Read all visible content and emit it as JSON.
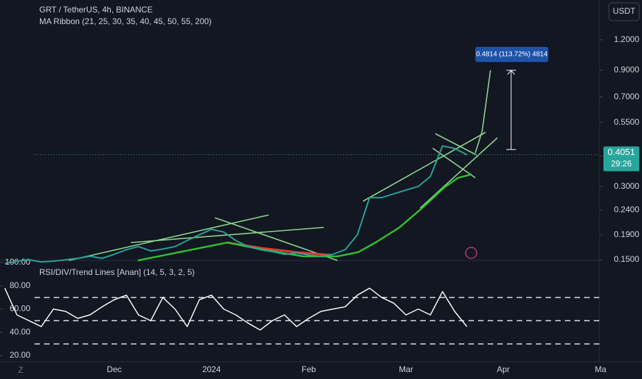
{
  "currency": "USDT",
  "countdown": "29:26",
  "chart_data": [
    {
      "type": "line",
      "title": "GRT / TetherUS, 4h, BINANCE",
      "subtitle": "MA Ribbon (21, 25, 30, 35, 40, 45, 50, 55, 200)",
      "annotation": "0.4814 (113.72%) 4814",
      "log_scale": true,
      "color": "#26a69a",
      "categories": [
        null,
        null,
        null,
        null,
        null,
        null,
        null,
        null,
        null,
        "Dec",
        null,
        null,
        null,
        null,
        null,
        null,
        null,
        "2024",
        null,
        null,
        null,
        null,
        null,
        null,
        null,
        "Feb",
        null,
        null,
        null,
        null,
        null,
        null,
        null,
        "Mar",
        null,
        null,
        null,
        null,
        null,
        null,
        null,
        "Apr",
        null,
        null,
        null,
        null,
        null,
        null,
        null,
        "Ma"
      ],
      "values": [
        0.145,
        0.148,
        0.15,
        0.147,
        0.148,
        0.15,
        0.152,
        0.155,
        0.152,
        0.158,
        0.165,
        0.17,
        0.163,
        0.166,
        0.17,
        0.18,
        0.19,
        0.2,
        0.195,
        0.18,
        0.17,
        0.165,
        0.162,
        0.158,
        0.16,
        0.157,
        0.155,
        0.158,
        0.165,
        0.19,
        0.27,
        0.27,
        0.28,
        0.29,
        0.3,
        0.33,
        0.44,
        0.43,
        0.4051,
        null,
        null,
        null,
        null,
        null,
        null,
        null,
        null,
        null,
        null,
        null
      ],
      "ylim": [
        0.149,
        1.75
      ],
      "yticks": [
        {
          "value": 0.15,
          "label": "0.1500"
        },
        {
          "value": 0.19,
          "label": "0.1900"
        },
        {
          "value": 0.24,
          "label": "0.2400"
        },
        {
          "value": 0.3,
          "label": "0.3000"
        },
        {
          "value": 0.4,
          "label": "0.4000"
        },
        {
          "value": 0.55,
          "label": "0.5500"
        },
        {
          "value": 0.7,
          "label": "0.7000"
        },
        {
          "value": 0.9,
          "label": "0.9000"
        },
        {
          "value": 1.2,
          "label": "1.2000"
        }
      ]
    },
    {
      "type": "line",
      "title": "RSI/DIV/Trend Lines [Anan] (14, 5, 3, 2, 5)",
      "color": "#ffffff",
      "values": [
        78,
        55,
        50,
        45,
        60,
        58,
        52,
        55,
        62,
        68,
        72,
        55,
        50,
        70,
        60,
        45,
        68,
        72,
        60,
        55,
        48,
        42,
        50,
        55,
        45,
        52,
        58,
        60,
        62,
        72,
        78,
        70,
        65,
        55,
        60,
        55,
        75,
        58,
        45,
        null,
        null,
        null,
        null,
        null,
        null,
        null,
        null,
        null,
        null,
        null
      ],
      "levels": [
        70,
        50,
        30
      ],
      "ylim": [
        14.7,
        101.8
      ],
      "yticks": [
        {
          "value": 100,
          "label": "100.00"
        },
        {
          "value": 80,
          "label": "80.00"
        },
        {
          "value": 60,
          "label": "60.00"
        },
        {
          "value": 40,
          "label": "40.00"
        },
        {
          "value": 20,
          "label": "20.00"
        }
      ]
    }
  ]
}
